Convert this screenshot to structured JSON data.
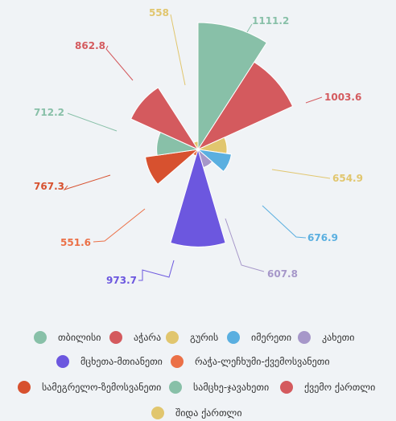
{
  "chart_data": {
    "type": "polar-area",
    "title": "",
    "series": [
      {
        "name": "თბილისი",
        "value": 1111.2,
        "color": "#88c0a8"
      },
      {
        "name": "აჭარა",
        "value": 1003.6,
        "color": "#d45a5e"
      },
      {
        "name": "გურის",
        "value": 654.9,
        "color": "#e1c66e"
      },
      {
        "name": "იმერეთი",
        "value": 676.9,
        "color": "#5aafe0"
      },
      {
        "name": "კახეთი",
        "value": 607.8,
        "color": "#a697c9"
      },
      {
        "name": "მცხეთა-მთიანეთი",
        "value": 973.7,
        "color": "#6c57df"
      },
      {
        "name": "რაჭა-ლეჩხუმი-ქვემოსვანეთი",
        "value": 551.6,
        "color": "#eb7047"
      },
      {
        "name": "სამეგრელო-ზემოსვანეთი",
        "value": 767.3,
        "color": "#d7512f"
      },
      {
        "name": "სამცხე-ჯავახეთი",
        "value": 712.2,
        "color": "#88c0a8"
      },
      {
        "name": "ქვემო ქართლი",
        "value": 862.8,
        "color": "#d45a5e"
      },
      {
        "name": "შიდა ქართლი",
        "value": 558,
        "color": "#e1c66e"
      }
    ],
    "value_labels": [
      "1111.2",
      "1003.6",
      "654.9",
      "676.9",
      "607.8",
      "973.7",
      "551.6",
      "767.3",
      "712.2",
      "862.8",
      "558"
    ],
    "legend_position": "bottom"
  }
}
